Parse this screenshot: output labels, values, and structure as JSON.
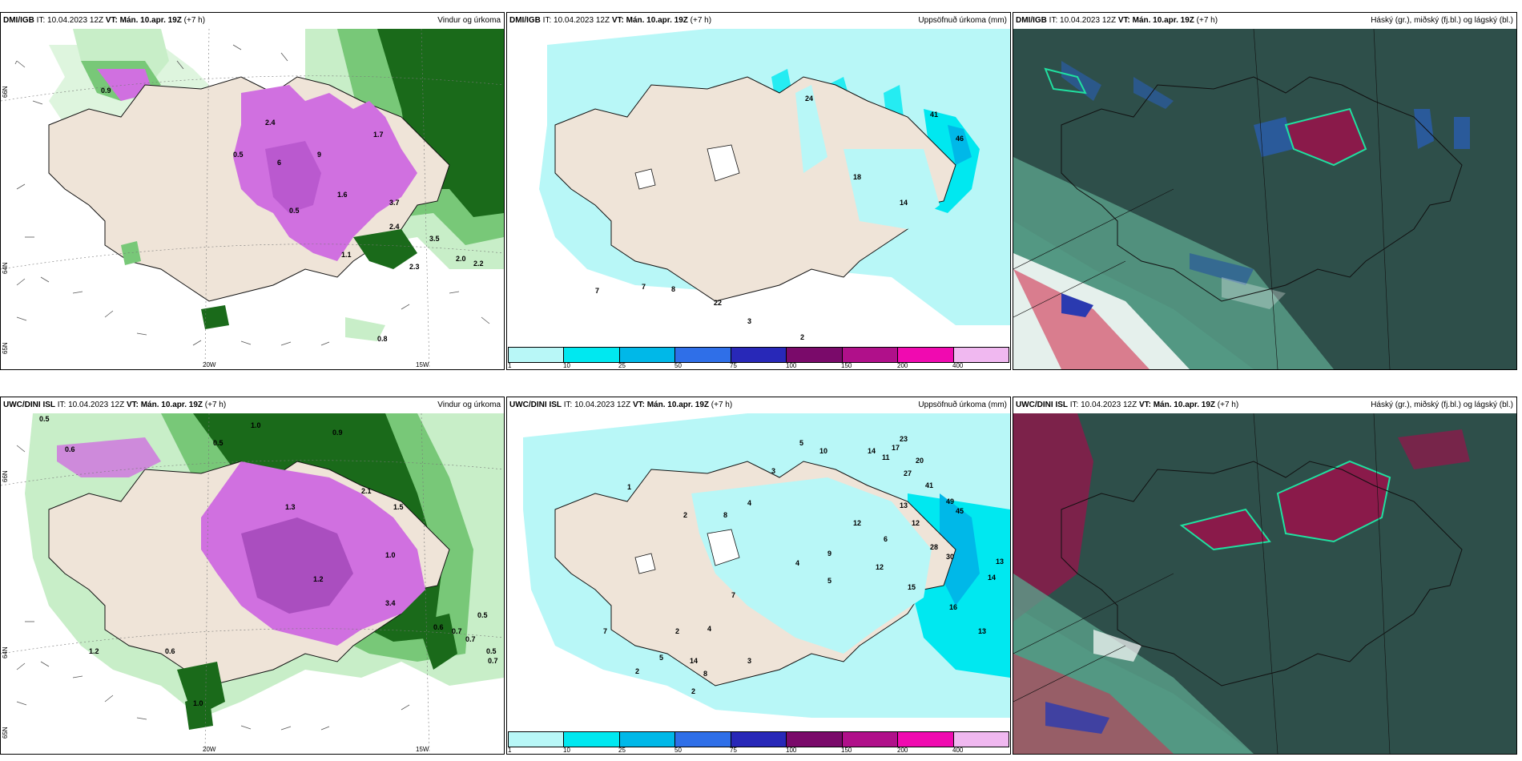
{
  "headers": {
    "top_left": {
      "model": "DMI/IGB",
      "it": " IT: 10.04.2023 12Z ",
      "vt": "VT: Mán. 10.apr. 19Z",
      "lead": " (+7 h)",
      "product": "Vindur og úrkoma"
    },
    "top_mid": {
      "model": "DMI/IGB",
      "it": " IT: 10.04.2023 12Z ",
      "vt": "VT: Mán. 10.apr. 19Z",
      "lead": " (+7 h)",
      "product": "Uppsöfnuð úrkoma (mm)"
    },
    "top_right": {
      "model": "DMI/IGB",
      "it": " IT: 10.04.2023 12Z ",
      "vt": "VT: Mán. 10.apr. 19Z",
      "lead": " (+7 h)",
      "product": "Háský (gr.), miðský (fj.bl.) og lágský (bl.)"
    },
    "bot_left": {
      "model": "UWC/DINI ISL",
      "it": " IT: 10.04.2023 12Z ",
      "vt": "VT: Mán. 10.apr. 19Z",
      "lead": " (+7 h)",
      "product": "Vindur og úrkoma"
    },
    "bot_mid": {
      "model": "UWC/DINI ISL",
      "it": " IT: 10.04.2023 12Z ",
      "vt": "VT: Mán. 10.apr. 19Z",
      "lead": " (+7 h)",
      "product": "Uppsöfnuð úrkoma (mm)"
    },
    "bot_right": {
      "model": "UWC/DINI ISL",
      "it": " IT: 10.04.2023 12Z ",
      "vt": "VT: Mán. 10.apr. 19Z",
      "lead": " (+7 h)",
      "product": "Háský (gr.), miðský (fj.bl.) og lágský (bl.)"
    }
  },
  "axes": {
    "lat_66": "66N",
    "lat_64": "64N",
    "lat_65": "65N",
    "lon_20": "20W",
    "lon_15": "15W"
  },
  "colorbar": {
    "ticks": [
      "1",
      "10",
      "25",
      "50",
      "75",
      "100",
      "150",
      "200",
      "400"
    ],
    "colors": [
      "#b8f7f7",
      "#00e8f0",
      "#00b8e8",
      "#2f6fe8",
      "#2828b8",
      "#7a0a6a",
      "#b0108a",
      "#f00ab0",
      "#f0b8f0"
    ]
  },
  "values": {
    "top_left": [
      "0.9",
      "0.5",
      "6",
      "9",
      "1.6",
      "2.4",
      "3.5",
      "2.3",
      "2.0",
      "2.2",
      "0.8",
      "3.7",
      "2.4",
      "0.5",
      "1.1",
      "1.7"
    ],
    "top_mid": [
      "24",
      "41",
      "46",
      "18",
      "14",
      "7",
      "7",
      "8",
      "22",
      "3",
      "2"
    ],
    "bot_left": [
      "0.5",
      "0.6",
      "0.5",
      "1.0",
      "0.9",
      "2.1",
      "1.3",
      "1.0",
      "1.5",
      "1.2",
      "3.4",
      "0.6",
      "0.5",
      "0.7",
      "0.5",
      "0.7",
      "1.2",
      "0.6",
      "0.7",
      "1.0"
    ],
    "bot_mid": [
      "1",
      "3",
      "2",
      "4",
      "5",
      "10",
      "14",
      "17",
      "23",
      "20",
      "11",
      "27",
      "41",
      "49",
      "45",
      "12",
      "13",
      "28",
      "30",
      "15",
      "16",
      "13",
      "14",
      "13",
      "8",
      "9",
      "4",
      "12",
      "6",
      "5",
      "7",
      "2",
      "2",
      "7",
      "5",
      "14",
      "8",
      "3",
      "2",
      "4",
      "12"
    ]
  },
  "colors": {
    "land": "#efe4d8",
    "rain_light": "#c8eec8",
    "rain_mid": "#78c878",
    "rain_dark": "#1a6a1a",
    "rain_magenta": "#d070e0",
    "accum_light": "#b8f7f7",
    "accum_mid": "#00e8f0",
    "cloud_bg": "#2a6a5a",
    "cloud_dark": "#2e4f4a",
    "cloud_red": "#8a1a4a",
    "cloud_blue": "#2a5a9a"
  }
}
